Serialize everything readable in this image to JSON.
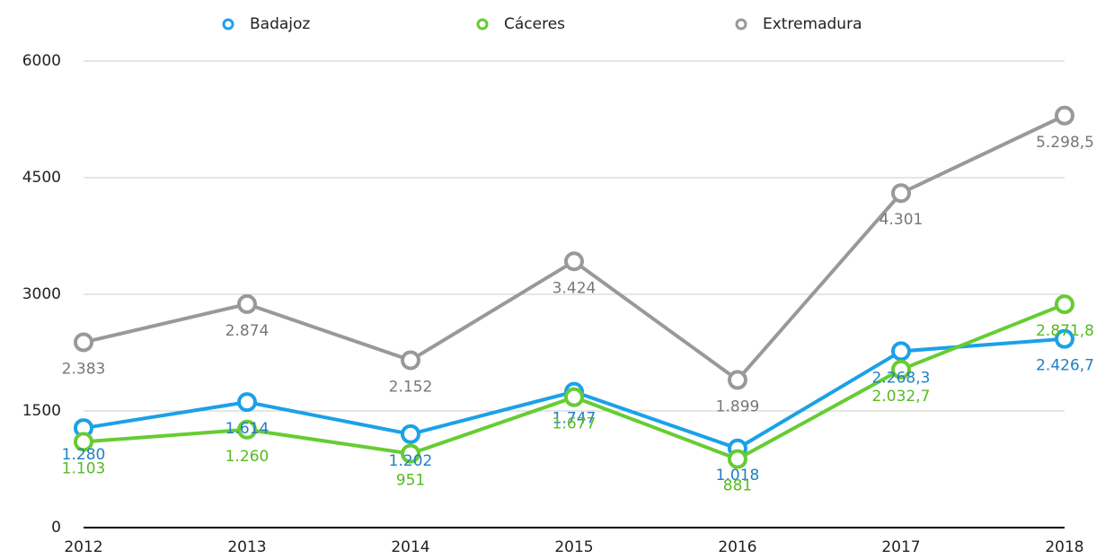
{
  "chart_data": {
    "type": "line",
    "categories": [
      "2012",
      "2013",
      "2014",
      "2015",
      "2016",
      "2017",
      "2018"
    ],
    "series": [
      {
        "name": "Badajoz",
        "color": "#1ba1e8",
        "values": [
          1280,
          1614,
          1202,
          1747,
          1018,
          2268.3,
          2426.7
        ],
        "value_labels": [
          "1.280",
          "1.614",
          "1.202",
          "1.747",
          "1.018",
          "2.268,3",
          "2.426,7"
        ]
      },
      {
        "name": "Cáceres",
        "color": "#66cc33",
        "values": [
          1103,
          1260,
          951,
          1677,
          881,
          2032.7,
          2871.8
        ],
        "value_labels": [
          "1.103",
          "1.260",
          "951",
          "1.677",
          "881",
          "2.032,7",
          "2.871,8"
        ]
      },
      {
        "name": "Extremadura",
        "color": "#999999",
        "values": [
          2383,
          2874,
          2152,
          3424,
          1899,
          4301,
          5298.5
        ],
        "value_labels": [
          "2.383",
          "2.874",
          "2.152",
          "3.424",
          "1.899",
          "4.301",
          "5.298,5"
        ]
      }
    ],
    "ylim": [
      0,
      6000
    ],
    "yticks": [
      0,
      1500,
      3000,
      4500,
      6000
    ],
    "grid": true,
    "legend": "top"
  }
}
